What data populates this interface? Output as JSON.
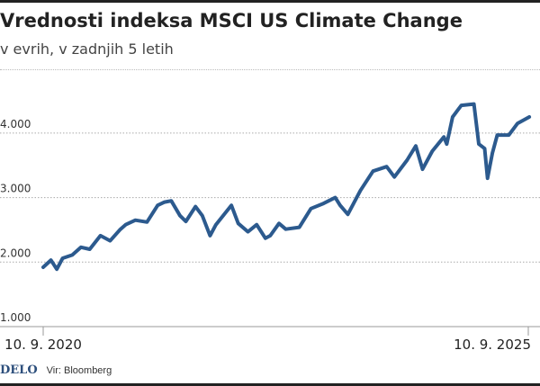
{
  "title": "Vrednosti indeksa MSCI US Climate Change",
  "subtitle": "v evrih, v zadnjih 5 letih",
  "footer": {
    "logo": "DELO",
    "source": "Vir: Bloomberg"
  },
  "chart_data": {
    "type": "line",
    "title": "Vrednosti indeksa MSCI US Climate Change",
    "subtitle": "v evrih, v zadnjih 5 letih",
    "xlabel": "",
    "ylabel": "",
    "ylim": [
      1000,
      4700
    ],
    "xlim": [
      2020.69,
      2025.69
    ],
    "grid": true,
    "y_ticks": [
      {
        "value": 1000,
        "label": "1.000"
      },
      {
        "value": 2000,
        "label": "2.000"
      },
      {
        "value": 3000,
        "label": "3.000"
      },
      {
        "value": 4000,
        "label": "4.000"
      }
    ],
    "x_ticks": [
      {
        "value": 2020.69,
        "label": "10. 9. 2020"
      },
      {
        "value": 2025.69,
        "label": "10. 9. 2025"
      }
    ],
    "color": "#2c5a8e",
    "series": [
      {
        "name": "MSCI US Climate Change",
        "x": [
          2020.69,
          2020.77,
          2020.83,
          2020.89,
          2020.99,
          2021.08,
          2021.17,
          2021.28,
          2021.38,
          2021.48,
          2021.54,
          2021.64,
          2021.76,
          2021.87,
          2021.94,
          2022.01,
          2022.1,
          2022.16,
          2022.26,
          2022.33,
          2022.41,
          2022.47,
          2022.63,
          2022.7,
          2022.8,
          2022.89,
          2022.98,
          2023.03,
          2023.12,
          2023.19,
          2023.33,
          2023.45,
          2023.58,
          2023.7,
          2023.75,
          2023.83,
          2023.96,
          2024.09,
          2024.23,
          2024.31,
          2024.44,
          2024.53,
          2024.6,
          2024.7,
          2024.82,
          2024.85,
          2024.91,
          2025.0,
          2025.13,
          2025.18,
          2025.24,
          2025.27,
          2025.32,
          2025.37,
          2025.49,
          2025.58,
          2025.7
        ],
        "values": [
          1920,
          2030,
          1890,
          2060,
          2110,
          2230,
          2200,
          2410,
          2330,
          2500,
          2580,
          2650,
          2620,
          2880,
          2930,
          2950,
          2720,
          2630,
          2860,
          2720,
          2410,
          2580,
          2880,
          2600,
          2470,
          2580,
          2370,
          2410,
          2600,
          2510,
          2540,
          2830,
          2910,
          3000,
          2880,
          2740,
          3110,
          3410,
          3480,
          3320,
          3580,
          3800,
          3440,
          3720,
          3940,
          3830,
          4250,
          4430,
          4450,
          3830,
          3760,
          3300,
          3690,
          3970,
          3970,
          4150,
          4250
        ]
      }
    ]
  }
}
